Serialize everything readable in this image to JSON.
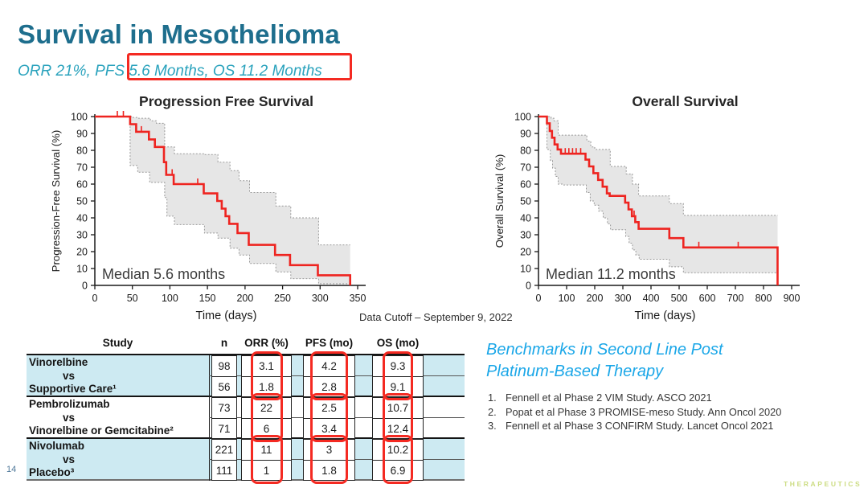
{
  "slide": {
    "title": "Survival in Mesothelioma",
    "subtitle": "ORR 21%, PFS 5.6 Months, OS 11.2 Months",
    "data_cutoff": "Data Cutoff – September 9, 2022",
    "page_number": "14",
    "logo_text": "THERAPEUTICS"
  },
  "benchmarks": {
    "heading_line1": "Benchmarks in Second Line Post",
    "heading_line2": "Platinum-Based Therapy",
    "references": [
      {
        "num": "1.",
        "text": "Fennell et al Phase 2 VIM Study. ASCO 2021"
      },
      {
        "num": "2.",
        "text": "Popat et al Phase 3 PROMISE-meso Study. Ann Oncol 2020"
      },
      {
        "num": "3.",
        "text": "Fennell et al Phase 3 CONFIRM Study. Lancet Oncol 2021"
      }
    ]
  },
  "table": {
    "headers": [
      "Study",
      "n",
      "ORR (%)",
      "PFS (mo)",
      "OS (mo)"
    ],
    "groups": [
      {
        "study": [
          "Vinorelbine",
          "vs",
          "Supportive Care¹"
        ],
        "shaded": true,
        "rows": [
          {
            "n": "98",
            "orr": "3.1",
            "pfs": "4.2",
            "os": "9.3"
          },
          {
            "n": "56",
            "orr": "1.8",
            "pfs": "2.8",
            "os": "9.1"
          }
        ]
      },
      {
        "study": [
          "Pembrolizumab",
          "vs",
          "Vinorelbine or Gemcitabine²"
        ],
        "shaded": false,
        "rows": [
          {
            "n": "73",
            "orr": "22",
            "pfs": "2.5",
            "os": "10.7"
          },
          {
            "n": "71",
            "orr": "6",
            "pfs": "3.4",
            "os": "12.4"
          }
        ]
      },
      {
        "study": [
          "Nivolumab",
          "vs",
          "Placebo³"
        ],
        "shaded": true,
        "rows": [
          {
            "n": "221",
            "orr": "11",
            "pfs": "3",
            "os": "10.2"
          },
          {
            "n": "111",
            "orr": "1",
            "pfs": "1.8",
            "os": "6.9"
          }
        ]
      }
    ]
  },
  "colors": {
    "title_teal": "#1e6e8d",
    "subtitle_teal": "#2ba3bd",
    "benchmark_blue": "#1ba7e8",
    "highlight_red": "#f42a22",
    "curve_red": "#ee2420",
    "ci_fill": "#e6e6e6",
    "ci_edge": "#999999",
    "row_shade_blue": "#cdeaf2"
  },
  "chart_data": [
    {
      "type": "line",
      "subtype": "kaplan_meier_step",
      "title": "Progression Free Survival",
      "xlabel": "Time (days)",
      "ylabel": "Progression-Free Survival (%)",
      "annotation": "Median 5.6 months",
      "median_months": 5.6,
      "xlim": [
        0,
        350
      ],
      "ylim": [
        0,
        100
      ],
      "xticks": [
        0,
        50,
        100,
        150,
        200,
        250,
        300,
        350
      ],
      "yticks": [
        0,
        10,
        20,
        30,
        40,
        50,
        60,
        70,
        80,
        90,
        100
      ],
      "grid": false,
      "curve": [
        [
          0,
          100
        ],
        [
          47,
          95.5
        ],
        [
          55,
          91
        ],
        [
          72,
          86.5
        ],
        [
          80,
          82
        ],
        [
          92,
          73
        ],
        [
          95,
          65.5
        ],
        [
          105,
          60
        ],
        [
          145,
          54.5
        ],
        [
          163,
          50
        ],
        [
          169,
          45.5
        ],
        [
          174,
          41
        ],
        [
          179,
          36.5
        ],
        [
          190,
          31
        ],
        [
          205,
          24
        ],
        [
          240,
          18
        ],
        [
          260,
          12
        ],
        [
          297,
          6
        ],
        [
          340,
          0
        ]
      ],
      "censor_marks": [
        [
          30,
          100
        ],
        [
          38,
          100
        ],
        [
          62,
          91
        ],
        [
          103,
          65.5
        ],
        [
          137,
          60
        ]
      ],
      "ci_upper": [
        [
          0,
          100
        ],
        [
          50,
          99.5
        ],
        [
          57,
          99
        ],
        [
          74,
          97.5
        ],
        [
          82,
          96
        ],
        [
          93,
          82
        ],
        [
          106,
          78
        ],
        [
          146,
          77.5
        ],
        [
          164,
          73
        ],
        [
          180,
          68
        ],
        [
          192,
          62
        ],
        [
          206,
          55
        ],
        [
          241,
          47
        ],
        [
          261,
          40
        ],
        [
          298,
          24
        ],
        [
          340,
          24
        ]
      ],
      "ci_lower": [
        [
          0,
          100
        ],
        [
          47,
          71
        ],
        [
          57,
          67
        ],
        [
          73,
          61
        ],
        [
          93,
          52
        ],
        [
          96,
          41
        ],
        [
          106,
          36
        ],
        [
          146,
          31
        ],
        [
          164,
          28
        ],
        [
          180,
          22
        ],
        [
          192,
          18
        ],
        [
          206,
          13
        ],
        [
          241,
          8
        ],
        [
          261,
          4
        ],
        [
          298,
          1
        ],
        [
          340,
          1
        ]
      ]
    },
    {
      "type": "line",
      "subtype": "kaplan_meier_step",
      "title": "Overall Survival",
      "xlabel": "Time (days)",
      "ylabel": "Overall Survival (%)",
      "annotation": "Median 11.2 months",
      "median_months": 11.2,
      "xlim": [
        0,
        900
      ],
      "ylim": [
        0,
        100
      ],
      "xticks": [
        0,
        100,
        200,
        300,
        400,
        500,
        600,
        700,
        800,
        900
      ],
      "yticks": [
        0,
        10,
        20,
        30,
        40,
        50,
        60,
        70,
        80,
        90,
        100
      ],
      "grid": false,
      "curve": [
        [
          0,
          100
        ],
        [
          30,
          96
        ],
        [
          40,
          91.5
        ],
        [
          48,
          87.5
        ],
        [
          57,
          83.5
        ],
        [
          68,
          80.5
        ],
        [
          80,
          78
        ],
        [
          167,
          74.5
        ],
        [
          180,
          70.5
        ],
        [
          195,
          66.5
        ],
        [
          212,
          62.5
        ],
        [
          228,
          58.5
        ],
        [
          243,
          54.5
        ],
        [
          253,
          53
        ],
        [
          308,
          49
        ],
        [
          320,
          45
        ],
        [
          332,
          41
        ],
        [
          344,
          37.5
        ],
        [
          356,
          33.5
        ],
        [
          465,
          28
        ],
        [
          515,
          22.5
        ],
        [
          850,
          0
        ]
      ],
      "censor_marks": [
        [
          95,
          78
        ],
        [
          108,
          78
        ],
        [
          121,
          78
        ],
        [
          134,
          78
        ],
        [
          150,
          78
        ],
        [
          340,
          41
        ],
        [
          570,
          22.5
        ],
        [
          710,
          22.5
        ]
      ],
      "ci_upper": [
        [
          0,
          100
        ],
        [
          33,
          100
        ],
        [
          45,
          99
        ],
        [
          55,
          97.5
        ],
        [
          70,
          89
        ],
        [
          172,
          85.5
        ],
        [
          186,
          82
        ],
        [
          200,
          80.5
        ],
        [
          255,
          70.5
        ],
        [
          312,
          66
        ],
        [
          334,
          60
        ],
        [
          356,
          53
        ],
        [
          465,
          48.5
        ],
        [
          515,
          41.5
        ],
        [
          850,
          41.5
        ]
      ],
      "ci_lower": [
        [
          0,
          100
        ],
        [
          30,
          80.5
        ],
        [
          42,
          74
        ],
        [
          50,
          69.5
        ],
        [
          60,
          64.5
        ],
        [
          70,
          60
        ],
        [
          90,
          59.5
        ],
        [
          170,
          55
        ],
        [
          184,
          50
        ],
        [
          198,
          47.5
        ],
        [
          214,
          44
        ],
        [
          230,
          40
        ],
        [
          245,
          36.5
        ],
        [
          256,
          33
        ],
        [
          310,
          29
        ],
        [
          322,
          25
        ],
        [
          334,
          21
        ],
        [
          346,
          18
        ],
        [
          358,
          15.5
        ],
        [
          465,
          11
        ],
        [
          515,
          7.5
        ],
        [
          850,
          7.5
        ]
      ]
    }
  ]
}
